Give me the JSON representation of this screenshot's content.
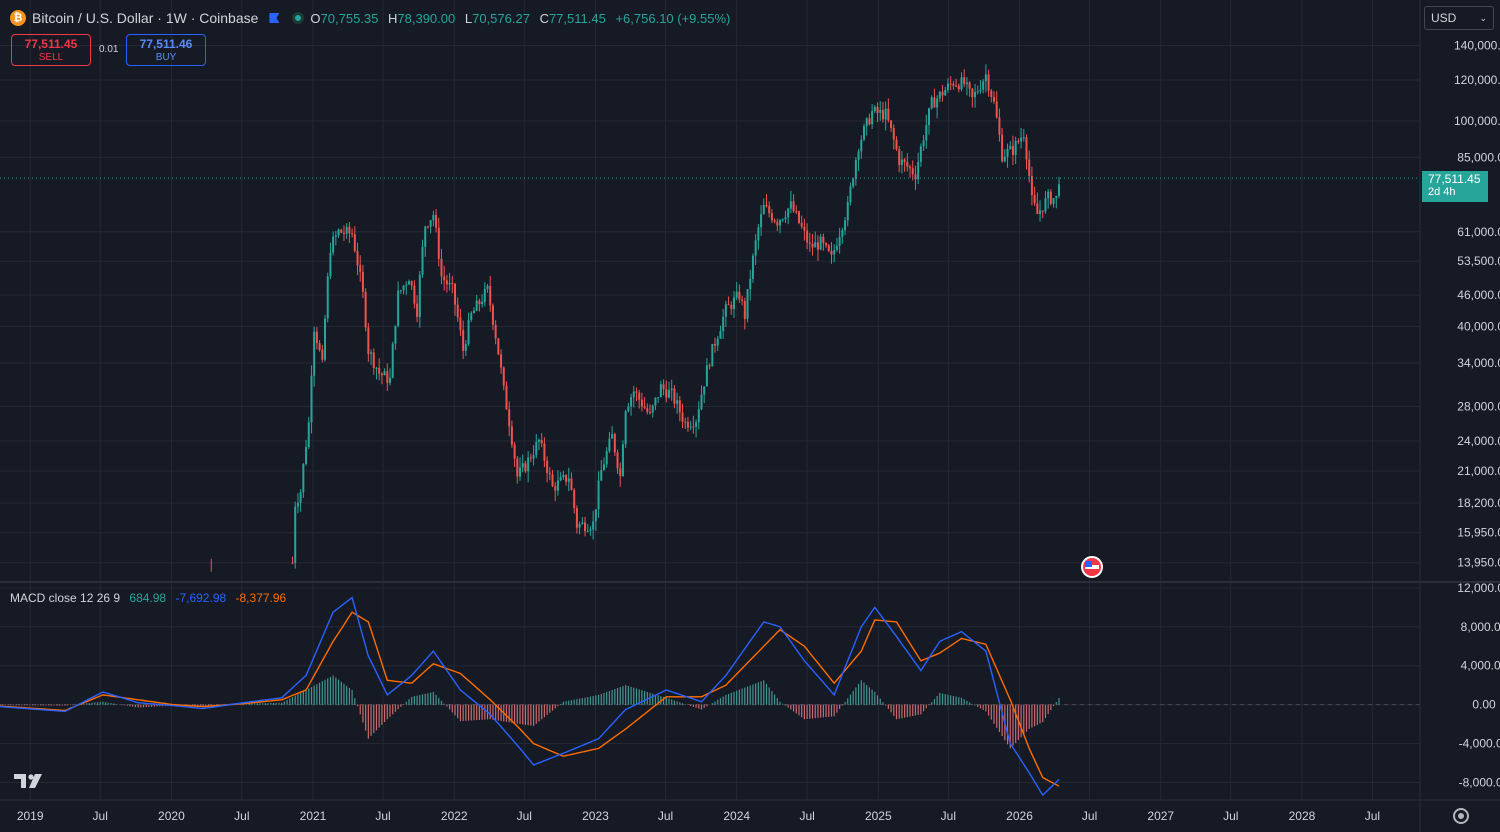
{
  "header": {
    "symbol_title": "Bitcoin / U.S. Dollar · 1W · Coinbase",
    "ohlc": {
      "o_label": "O",
      "o": "70,755.35",
      "h_label": "H",
      "h": "78,390.00",
      "l_label": "L",
      "l": "70,576.27",
      "c_label": "C",
      "c": "77,511.45",
      "change": "+6,756.10 (+9.55%)"
    }
  },
  "trade": {
    "sell_price": "77,511.45",
    "sell_label": "SELL",
    "spread": "0.01",
    "buy_price": "77,511.46",
    "buy_label": "BUY"
  },
  "currency_select": {
    "value": "USD"
  },
  "last_price_tag": {
    "price": "77,511.45",
    "countdown": "2d 4h"
  },
  "macd": {
    "label": "MACD close 12 26 9",
    "histogram": "684.98",
    "macd": "-7,692.98",
    "signal": "-8,377.96"
  },
  "colors": {
    "up": "#26a69a",
    "down": "#ef5350",
    "macd_line": "#2962ff",
    "signal_line": "#ff6d00",
    "background": "#161a25",
    "grid": "#242833"
  },
  "chart_data": [
    {
      "type": "candlestick",
      "title": "Bitcoin / U.S. Dollar · 1W · Coinbase",
      "y_scale": "log",
      "y_ticks": [
        13950,
        15950,
        18200,
        21000,
        24000,
        28000,
        34000,
        40000,
        46000,
        53500,
        61000,
        85000,
        100000,
        120000,
        140000
      ],
      "y_tick_labels": [
        "13,950.00",
        "15,950.00",
        "18,200.00",
        "21,000.00",
        "24,000.00",
        "28,000.00",
        "34,000.00",
        "40,000.00",
        "46,000.00",
        "53,500.00",
        "61,000.00",
        "85,000.00",
        "100,000.00",
        "120,000.00",
        "140,000.00"
      ],
      "ylim": [
        12800,
        150000
      ],
      "x_range": [
        "2018-10-15",
        "2028-11-01"
      ],
      "x_ticks": [
        "2019-01-01",
        "2019-07-01",
        "2020-01-01",
        "2020-07-01",
        "2021-01-01",
        "2021-07-01",
        "2022-01-01",
        "2022-07-01",
        "2023-01-01",
        "2023-07-01",
        "2024-01-01",
        "2024-07-01",
        "2025-01-01",
        "2025-07-01",
        "2026-01-01",
        "2026-07-01",
        "2027-01-01",
        "2027-07-01",
        "2028-01-01",
        "2028-07-01"
      ],
      "x_tick_labels": [
        "2019",
        "Jul",
        "2020",
        "Jul",
        "2021",
        "Jul",
        "2022",
        "Jul",
        "2023",
        "Jul",
        "2024",
        "Jul",
        "2025",
        "Jul",
        "2026",
        "Jul",
        "2027",
        "Jul",
        "2028",
        "Jul"
      ],
      "last_price": 77511.45,
      "weekly_close_path": [
        [
          "2020-11-09",
          13950
        ],
        [
          "2020-11-16",
          18200
        ],
        [
          "2020-11-30",
          19200
        ],
        [
          "2020-12-21",
          26000
        ],
        [
          "2021-01-04",
          40000
        ],
        [
          "2021-01-25",
          33500
        ],
        [
          "2021-02-15",
          57000
        ],
        [
          "2021-03-08",
          61000
        ],
        [
          "2021-04-12",
          60500
        ],
        [
          "2021-05-10",
          46000
        ],
        [
          "2021-05-24",
          36000
        ],
        [
          "2021-06-21",
          32500
        ],
        [
          "2021-07-19",
          31500
        ],
        [
          "2021-08-09",
          46000
        ],
        [
          "2021-09-06",
          50000
        ],
        [
          "2021-09-27",
          43000
        ],
        [
          "2021-10-18",
          63000
        ],
        [
          "2021-11-08",
          66000
        ],
        [
          "2021-11-29",
          50000
        ],
        [
          "2021-12-27",
          47000
        ],
        [
          "2022-01-24",
          36000
        ],
        [
          "2022-02-14",
          42000
        ],
        [
          "2022-03-28",
          47000
        ],
        [
          "2022-05-09",
          30000
        ],
        [
          "2022-06-13",
          20500
        ],
        [
          "2022-07-04",
          21500
        ],
        [
          "2022-08-08",
          24000
        ],
        [
          "2022-09-12",
          19500
        ],
        [
          "2022-10-24",
          20500
        ],
        [
          "2022-11-14",
          16500
        ],
        [
          "2022-12-26",
          16600
        ],
        [
          "2023-01-16",
          21000
        ],
        [
          "2023-02-13",
          24500
        ],
        [
          "2023-03-06",
          20500
        ],
        [
          "2023-03-20",
          28000
        ],
        [
          "2023-04-10",
          30000
        ],
        [
          "2023-05-22",
          26800
        ],
        [
          "2023-06-19",
          30500
        ],
        [
          "2023-07-17",
          29500
        ],
        [
          "2023-08-21",
          26000
        ],
        [
          "2023-09-18",
          26500
        ],
        [
          "2023-10-23",
          34500
        ],
        [
          "2023-12-04",
          43000
        ],
        [
          "2024-01-08",
          46000
        ],
        [
          "2024-01-22",
          42000
        ],
        [
          "2024-02-26",
          62000
        ],
        [
          "2024-03-11",
          68000
        ],
        [
          "2024-04-15",
          64000
        ],
        [
          "2024-05-20",
          68500
        ],
        [
          "2024-07-08",
          57000
        ],
        [
          "2024-08-05",
          58000
        ],
        [
          "2024-09-02",
          54000
        ],
        [
          "2024-10-14",
          68000
        ],
        [
          "2024-11-11",
          90000
        ],
        [
          "2024-12-16",
          104000
        ],
        [
          "2025-01-20",
          103000
        ],
        [
          "2025-02-24",
          84000
        ],
        [
          "2025-04-07",
          79000
        ],
        [
          "2025-05-19",
          108000
        ],
        [
          "2025-07-14",
          119000
        ],
        [
          "2025-08-11",
          118000
        ],
        [
          "2025-09-01",
          110000
        ],
        [
          "2025-10-06",
          123000
        ],
        [
          "2025-10-27",
          108000
        ],
        [
          "2025-11-17",
          86000
        ],
        [
          "2025-12-15",
          88000
        ],
        [
          "2026-01-12",
          95000
        ],
        [
          "2026-02-02",
          70000
        ],
        [
          "2026-02-16",
          66000
        ],
        [
          "2026-03-16",
          71000
        ],
        [
          "2026-04-06",
          70755.35
        ],
        [
          "2026-04-13",
          77511.45
        ]
      ]
    },
    {
      "type": "macd",
      "title": "MACD close 12 26 9",
      "y_ticks": [
        -8000,
        -4000,
        0,
        4000,
        8000,
        12000
      ],
      "y_tick_labels": [
        "-8,000.00",
        "-4,000.00",
        "0.00",
        "4,000.00",
        "8,000.00",
        "12,000.00"
      ],
      "ylim": [
        -9800,
        12600
      ],
      "macd_path": [
        [
          "2018-10-15",
          -200
        ],
        [
          "2019-04-01",
          -700
        ],
        [
          "2019-07-08",
          1300
        ],
        [
          "2019-10-07",
          200
        ],
        [
          "2020-01-06",
          -100
        ],
        [
          "2020-03-23",
          -400
        ],
        [
          "2020-07-06",
          200
        ],
        [
          "2020-10-12",
          700
        ],
        [
          "2020-12-14",
          3000
        ],
        [
          "2021-02-22",
          9500
        ],
        [
          "2021-04-12",
          11000
        ],
        [
          "2021-05-24",
          5000
        ],
        [
          "2021-07-12",
          1000
        ],
        [
          "2021-09-13",
          3000
        ],
        [
          "2021-11-08",
          5500
        ],
        [
          "2022-01-17",
          1500
        ],
        [
          "2022-04-04",
          -1000
        ],
        [
          "2022-06-20",
          -4500
        ],
        [
          "2022-07-25",
          -6200
        ],
        [
          "2022-10-10",
          -5000
        ],
        [
          "2023-01-09",
          -3500
        ],
        [
          "2023-03-20",
          -500
        ],
        [
          "2023-07-03",
          1500
        ],
        [
          "2023-10-02",
          300
        ],
        [
          "2023-12-04",
          3000
        ],
        [
          "2024-03-11",
          8500
        ],
        [
          "2024-04-22",
          8000
        ],
        [
          "2024-06-24",
          4500
        ],
        [
          "2024-09-09",
          1000
        ],
        [
          "2024-11-18",
          8000
        ],
        [
          "2024-12-23",
          10000
        ],
        [
          "2025-02-17",
          7000
        ],
        [
          "2025-04-21",
          3500
        ],
        [
          "2025-06-09",
          6500
        ],
        [
          "2025-08-04",
          7500
        ],
        [
          "2025-10-06",
          5500
        ],
        [
          "2025-12-08",
          -4000
        ],
        [
          "2026-01-26",
          -7000
        ],
        [
          "2026-03-02",
          -9300
        ],
        [
          "2026-04-13",
          -7692.98
        ]
      ],
      "signal_path": [
        [
          "2018-10-15",
          -150
        ],
        [
          "2019-04-01",
          -600
        ],
        [
          "2019-07-08",
          1000
        ],
        [
          "2019-10-07",
          500
        ],
        [
          "2020-01-06",
          0
        ],
        [
          "2020-03-23",
          -200
        ],
        [
          "2020-07-06",
          100
        ],
        [
          "2020-10-12",
          500
        ],
        [
          "2020-12-14",
          1500
        ],
        [
          "2021-02-22",
          6500
        ],
        [
          "2021-04-12",
          9500
        ],
        [
          "2021-05-24",
          8500
        ],
        [
          "2021-07-12",
          2500
        ],
        [
          "2021-09-13",
          2200
        ],
        [
          "2021-11-08",
          4200
        ],
        [
          "2022-01-17",
          3200
        ],
        [
          "2022-04-04",
          500
        ],
        [
          "2022-06-20",
          -2500
        ],
        [
          "2022-07-25",
          -4000
        ],
        [
          "2022-10-10",
          -5300
        ],
        [
          "2023-01-09",
          -4500
        ],
        [
          "2023-03-20",
          -2500
        ],
        [
          "2023-07-03",
          800
        ],
        [
          "2023-10-02",
          800
        ],
        [
          "2023-12-04",
          2000
        ],
        [
          "2024-03-11",
          6000
        ],
        [
          "2024-04-22",
          7700
        ],
        [
          "2024-06-24",
          6000
        ],
        [
          "2024-09-09",
          2200
        ],
        [
          "2024-11-18",
          5500
        ],
        [
          "2024-12-23",
          8700
        ],
        [
          "2025-02-17",
          8500
        ],
        [
          "2025-04-21",
          4500
        ],
        [
          "2025-06-09",
          5300
        ],
        [
          "2025-08-04",
          6800
        ],
        [
          "2025-10-06",
          6200
        ],
        [
          "2025-12-08",
          500
        ],
        [
          "2026-01-26",
          -4500
        ],
        [
          "2026-03-02",
          -7500
        ],
        [
          "2026-04-13",
          -8377.96
        ]
      ],
      "last_histogram": 684.98
    }
  ]
}
